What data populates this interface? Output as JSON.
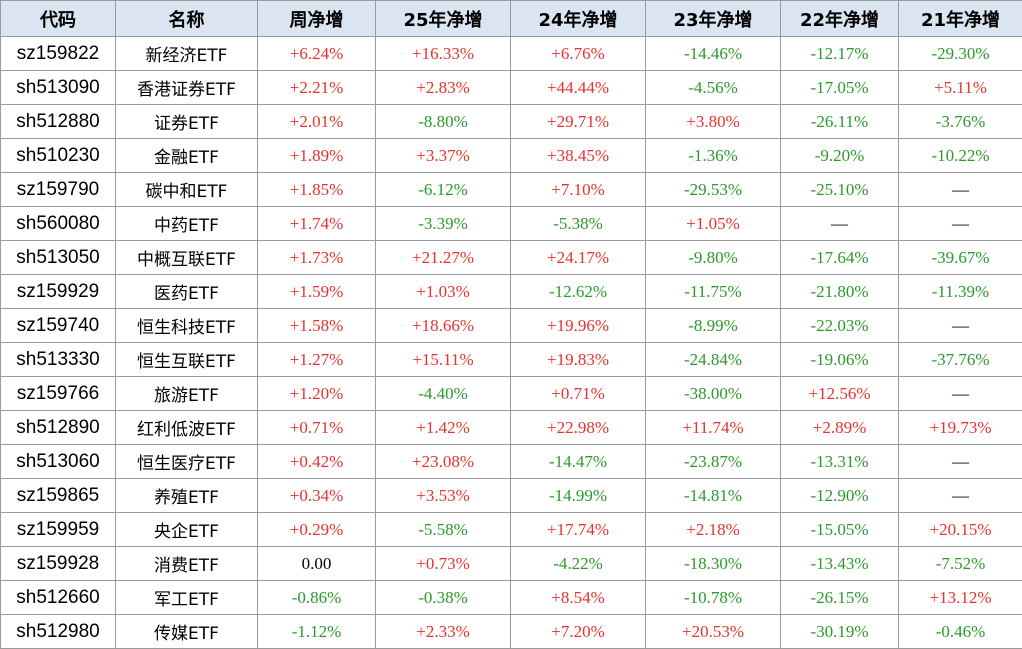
{
  "table": {
    "header": [
      "代码",
      "名称",
      "周净增",
      "25年净增",
      "24年净增",
      "23年净增",
      "22年净增",
      "21年净增"
    ],
    "rows": [
      [
        "sz159822",
        "新经济ETF",
        "+6.24%",
        "+16.33%",
        "+6.76%",
        "-14.46%",
        "-12.17%",
        "-29.30%"
      ],
      [
        "sh513090",
        "香港证券ETF",
        "+2.21%",
        "+2.83%",
        "+44.44%",
        "-4.56%",
        "-17.05%",
        "+5.11%"
      ],
      [
        "sh512880",
        "证券ETF",
        "+2.01%",
        "-8.80%",
        "+29.71%",
        "+3.80%",
        "-26.11%",
        "-3.76%"
      ],
      [
        "sh510230",
        "金融ETF",
        "+1.89%",
        "+3.37%",
        "+38.45%",
        "-1.36%",
        "-9.20%",
        "-10.22%"
      ],
      [
        "sz159790",
        "碳中和ETF",
        "+1.85%",
        "-6.12%",
        "+7.10%",
        "-29.53%",
        "-25.10%",
        "—"
      ],
      [
        "sh560080",
        "中药ETF",
        "+1.74%",
        "-3.39%",
        "-5.38%",
        "+1.05%",
        "—",
        "—"
      ],
      [
        "sh513050",
        "中概互联ETF",
        "+1.73%",
        "+21.27%",
        "+24.17%",
        "-9.80%",
        "-17.64%",
        "-39.67%"
      ],
      [
        "sz159929",
        "医药ETF",
        "+1.59%",
        "+1.03%",
        "-12.62%",
        "-11.75%",
        "-21.80%",
        "-11.39%"
      ],
      [
        "sz159740",
        "恒生科技ETF",
        "+1.58%",
        "+18.66%",
        "+19.96%",
        "-8.99%",
        "-22.03%",
        "—"
      ],
      [
        "sh513330",
        "恒生互联ETF",
        "+1.27%",
        "+15.11%",
        "+19.83%",
        "-24.84%",
        "-19.06%",
        "-37.76%"
      ],
      [
        "sz159766",
        "旅游ETF",
        "+1.20%",
        "-4.40%",
        "+0.71%",
        "-38.00%",
        "+12.56%",
        "—"
      ],
      [
        "sh512890",
        "红利低波ETF",
        "+0.71%",
        "+1.42%",
        "+22.98%",
        "+11.74%",
        "+2.89%",
        "+19.73%"
      ],
      [
        "sh513060",
        "恒生医疗ETF",
        "+0.42%",
        "+23.08%",
        "-14.47%",
        "-23.87%",
        "-13.31%",
        "—"
      ],
      [
        "sz159865",
        "养殖ETF",
        "+0.34%",
        "+3.53%",
        "-14.99%",
        "-14.81%",
        "-12.90%",
        "—"
      ],
      [
        "sz159959",
        "央企ETF",
        "+0.29%",
        "-5.58%",
        "+17.74%",
        "+2.18%",
        "-15.05%",
        "+20.15%"
      ],
      [
        "sz159928",
        "消费ETF",
        "0.00",
        "+0.73%",
        "-4.22%",
        "-18.30%",
        "-13.43%",
        "-7.52%"
      ],
      [
        "sh512660",
        "军工ETF",
        "-0.86%",
        "-0.38%",
        "+8.54%",
        "-10.78%",
        "-26.15%",
        "+13.12%"
      ],
      [
        "sh512980",
        "传媒ETF",
        "-1.12%",
        "+2.33%",
        "+7.20%",
        "+20.53%",
        "-30.19%",
        "-0.46%"
      ]
    ]
  }
}
